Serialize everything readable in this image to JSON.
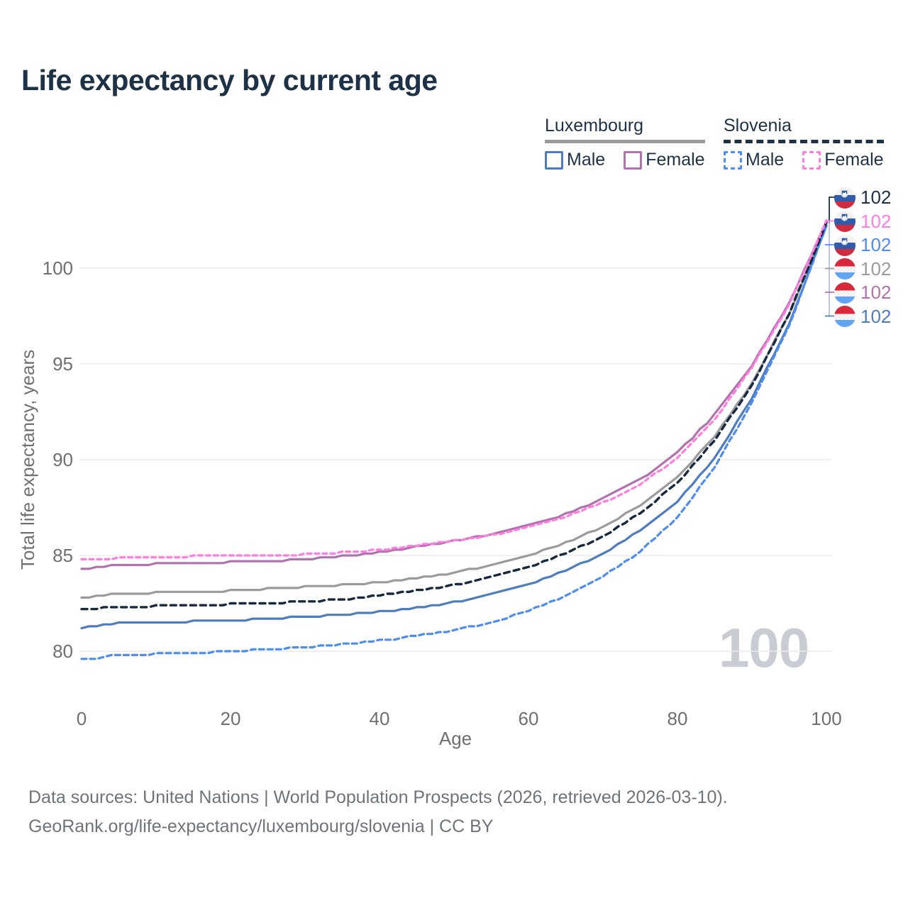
{
  "title": "Life expectancy by current age",
  "watermark": "100",
  "legend": {
    "groups": [
      {
        "label": "Luxembourg",
        "line_style": "solid",
        "underline_color": "#9b9b9b",
        "items": [
          {
            "label": "Male",
            "color": "#4e7cbe",
            "dashed": false
          },
          {
            "label": "Female",
            "color": "#b173ae",
            "dashed": false
          }
        ]
      },
      {
        "label": "Slovenia",
        "line_style": "dashed",
        "underline_color": "#1d3147",
        "items": [
          {
            "label": "Male",
            "color": "#4d8df0",
            "dashed": true
          },
          {
            "label": "Female",
            "color": "#ff7ce0",
            "dashed": true
          }
        ]
      }
    ]
  },
  "chart_data": {
    "type": "line",
    "title": "Life expectancy by current age",
    "xlabel": "Age",
    "ylabel": "Total life expectancy, years",
    "xlim": [
      0,
      100
    ],
    "ylim": [
      79,
      103.5
    ],
    "x_ticks": [
      0,
      20,
      40,
      60,
      80,
      100
    ],
    "y_ticks": [
      80,
      85,
      90,
      95,
      100
    ],
    "grid": true,
    "ages": [
      0,
      5,
      10,
      15,
      20,
      25,
      30,
      35,
      40,
      45,
      50,
      55,
      60,
      65,
      70,
      75,
      80,
      85,
      90,
      95,
      100
    ],
    "series": [
      {
        "name": "Luxembourg Total",
        "country": "luxembourg",
        "sex": "total",
        "color": "#9b9b9b",
        "dash": null,
        "width": 3.2,
        "values": [
          82.75,
          83.0,
          83.05,
          83.1,
          83.15,
          83.25,
          83.35,
          83.45,
          83.6,
          83.8,
          84.1,
          84.5,
          85.0,
          85.65,
          86.5,
          87.6,
          89.1,
          91.2,
          94.0,
          97.6,
          102.3
        ]
      },
      {
        "name": "Luxembourg Male",
        "country": "luxembourg",
        "sex": "male",
        "color": "#4e7cbe",
        "dash": null,
        "width": 3.2,
        "values": [
          81.2,
          81.45,
          81.5,
          81.55,
          81.6,
          81.7,
          81.8,
          81.9,
          82.05,
          82.25,
          82.55,
          82.95,
          83.5,
          84.2,
          85.1,
          86.3,
          87.8,
          90.1,
          93.2,
          97.1,
          102.2
        ]
      },
      {
        "name": "Luxembourg Female",
        "country": "luxembourg",
        "sex": "female",
        "color": "#b173ae",
        "dash": null,
        "width": 3.2,
        "values": [
          84.25,
          84.5,
          84.55,
          84.6,
          84.65,
          84.7,
          84.8,
          84.95,
          85.15,
          85.45,
          85.75,
          86.1,
          86.55,
          87.15,
          87.95,
          88.95,
          90.35,
          92.35,
          94.9,
          98.2,
          102.4
        ]
      },
      {
        "name": "Slovenia Male",
        "country": "slovenia",
        "sex": "male",
        "color": "#4d8df0",
        "dash": "7 5",
        "width": 3.2,
        "values": [
          79.55,
          79.8,
          79.85,
          79.9,
          80.0,
          80.1,
          80.2,
          80.35,
          80.55,
          80.8,
          81.1,
          81.5,
          82.1,
          82.9,
          83.9,
          85.2,
          87.0,
          89.6,
          93.0,
          97.0,
          102.2
        ]
      },
      {
        "name": "Slovenia Total",
        "country": "slovenia",
        "sex": "total",
        "color": "#16293f",
        "dash": "8 6",
        "width": 3.4,
        "values": [
          82.2,
          82.3,
          82.35,
          82.4,
          82.45,
          82.5,
          82.6,
          82.7,
          82.9,
          83.15,
          83.45,
          83.85,
          84.4,
          85.1,
          86.0,
          87.2,
          88.8,
          91.0,
          93.9,
          97.6,
          102.35
        ]
      },
      {
        "name": "Slovenia Female",
        "country": "slovenia",
        "sex": "female",
        "color": "#ff7ce0",
        "dash": "6 5",
        "width": 3.2,
        "values": [
          84.8,
          84.85,
          84.9,
          84.95,
          85.0,
          85.0,
          85.05,
          85.15,
          85.3,
          85.5,
          85.75,
          86.05,
          86.45,
          87.0,
          87.75,
          88.7,
          90.1,
          92.1,
          94.8,
          98.1,
          102.45
        ]
      }
    ],
    "end_labels": [
      {
        "value": "102",
        "flag": "slovenia",
        "color": "#1d3147"
      },
      {
        "value": "102",
        "flag": "slovenia",
        "color": "#ff7ce0"
      },
      {
        "value": "102",
        "flag": "slovenia",
        "color": "#4d8df0"
      },
      {
        "value": "102",
        "flag": "luxembourg",
        "color": "#9b9b9b"
      },
      {
        "value": "102",
        "flag": "luxembourg",
        "color": "#b173ae"
      },
      {
        "value": "102",
        "flag": "luxembourg",
        "color": "#4e7cbe"
      }
    ],
    "legend_position": "top-right"
  },
  "footer": {
    "line1": "Data sources: United Nations | World Population Prospects (2026, retrieved 2026-03-10).",
    "line2": "GeoRank.org/life-expectancy/luxembourg/slovenia | CC BY"
  }
}
